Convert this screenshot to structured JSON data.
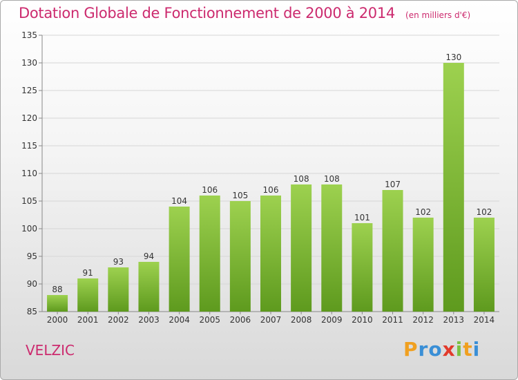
{
  "chart_data": {
    "type": "bar",
    "title": "Dotation Globale de Fonctionnement de 2000 à 2014",
    "subtitle": "(en milliers d'€)",
    "categories": [
      "2000",
      "2001",
      "2002",
      "2003",
      "2004",
      "2005",
      "2006",
      "2007",
      "2008",
      "2009",
      "2010",
      "2011",
      "2012",
      "2013",
      "2014"
    ],
    "values": [
      88,
      91,
      93,
      94,
      104,
      106,
      105,
      106,
      108,
      108,
      101,
      107,
      102,
      130,
      102
    ],
    "ylim": [
      85,
      135
    ],
    "yticks": [
      85,
      90,
      95,
      100,
      105,
      110,
      115,
      120,
      125,
      130,
      135
    ],
    "grid": true,
    "bar_color_top": "#9dd14f",
    "bar_color_bottom": "#5e9a1e"
  },
  "commune": "VELZIC",
  "logo": {
    "letters": [
      "P",
      "r",
      "o",
      "x",
      "i",
      "t",
      "i"
    ],
    "colors": [
      "#f0a020",
      "#3a8fd6",
      "#3a8fd6",
      "#e23a2b",
      "#7cc142",
      "#f0a020",
      "#3a8fd6"
    ]
  }
}
